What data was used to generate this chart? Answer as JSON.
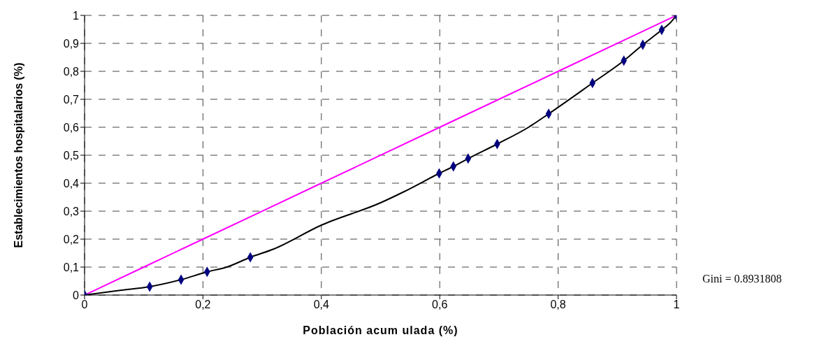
{
  "chart_data": {
    "type": "line",
    "xlabel": "Población acum ulada (%)",
    "ylabel": "Establecimientos hospitalarios (%)",
    "xlim": [
      0,
      1
    ],
    "ylim": [
      0,
      1
    ],
    "xticks": [
      0,
      {
        "value": 0.2,
        "label": "0,2"
      },
      {
        "value": 0.4,
        "label": "0,4"
      },
      {
        "value": 0.6,
        "label": "0,6"
      },
      {
        "value": 0.8,
        "label": "0,8"
      },
      1
    ],
    "yticks": [
      0,
      {
        "value": 0.1,
        "label": "0,1"
      },
      {
        "value": 0.2,
        "label": "0,2"
      },
      {
        "value": 0.3,
        "label": "0,3"
      },
      {
        "value": 0.4,
        "label": "0,4"
      },
      {
        "value": 0.5,
        "label": "0,5"
      },
      {
        "value": 0.6,
        "label": "0,6"
      },
      {
        "value": 0.7,
        "label": "0,7"
      },
      {
        "value": 0.8,
        "label": "0,8"
      },
      {
        "value": 0.9,
        "label": "0,9"
      },
      1
    ],
    "grid": true,
    "line_style": "solid",
    "series": [
      {
        "color": "#ff00ff",
        "marker": "none",
        "x": [
          0,
          0.2,
          0.4,
          0.6,
          0.8,
          1
        ],
        "values": [
          0,
          0.2,
          0.4,
          0.6,
          0.8,
          1
        ]
      },
      {
        "color": "#000000",
        "marker": "none",
        "x": [
          0,
          0.06,
          0.11,
          0.163,
          0.207,
          0.24,
          0.28,
          0.32,
          0.4,
          0.5,
          0.54,
          0.599,
          0.623,
          0.648,
          0.697,
          0.75,
          0.784,
          0.858,
          0.911,
          0.943,
          0.975,
          0.99,
          1
        ],
        "values": [
          0,
          0.017,
          0.03,
          0.055,
          0.083,
          0.1,
          0.135,
          0.165,
          0.25,
          0.33,
          0.37,
          0.435,
          0.46,
          0.488,
          0.54,
          0.6,
          0.648,
          0.758,
          0.838,
          0.895,
          0.948,
          0.975,
          1
        ]
      },
      {
        "type": "scatter",
        "color": "#000080",
        "marker": "diamond",
        "x": [
          0,
          0.11,
          0.163,
          0.207,
          0.28,
          0.599,
          0.623,
          0.648,
          0.697,
          0.784,
          0.858,
          0.911,
          0.943,
          0.975,
          1
        ],
        "values": [
          0,
          0.03,
          0.055,
          0.083,
          0.135,
          0.435,
          0.46,
          0.488,
          0.54,
          0.648,
          0.758,
          0.838,
          0.895,
          0.948,
          1
        ]
      }
    ],
    "annotations": [
      "Gini = 0.8931808"
    ]
  }
}
